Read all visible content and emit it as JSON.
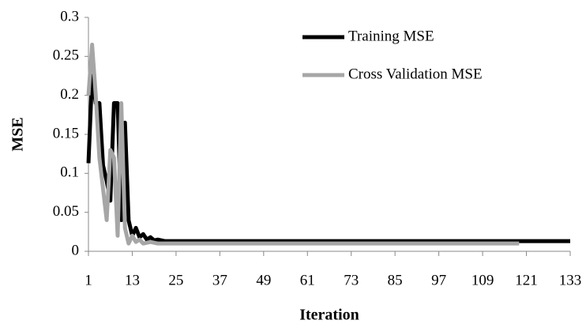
{
  "chart_data": {
    "type": "line",
    "x_label": "Iteration",
    "y_label": "MSE",
    "x": [
      1,
      2,
      3,
      4,
      5,
      6,
      7,
      8,
      9,
      10,
      11,
      12,
      13,
      14,
      15,
      16,
      17,
      18,
      19,
      20,
      22,
      119,
      133
    ],
    "series": [
      {
        "name": "Training MSE",
        "color": "#000000",
        "values": [
          0.113,
          0.225,
          0.19,
          0.19,
          0.11,
          0.09,
          0.065,
          0.19,
          0.19,
          0.04,
          0.165,
          0.04,
          0.02,
          0.03,
          0.018,
          0.022,
          0.015,
          0.018,
          0.014,
          0.015,
          0.013,
          0.013,
          0.013
        ]
      },
      {
        "name": "Cross Validation MSE",
        "color": "#a6a6a6",
        "values": [
          0.2,
          0.265,
          0.2,
          0.12,
          0.08,
          0.04,
          0.13,
          0.12,
          0.02,
          0.19,
          0.03,
          0.01,
          0.02,
          0.012,
          0.015,
          0.01,
          0.011,
          0.012,
          0.011,
          0.01,
          0.01,
          0.01,
          null
        ]
      }
    ],
    "xlim": [
      1,
      133
    ],
    "xticks": [
      1,
      13,
      25,
      37,
      49,
      61,
      73,
      85,
      97,
      109,
      121,
      133
    ],
    "ylim": [
      0,
      0.3
    ],
    "yticks": [
      0,
      0.05,
      0.1,
      0.15,
      0.2,
      0.25,
      0.3
    ],
    "grid": false,
    "legend": "upper right"
  }
}
